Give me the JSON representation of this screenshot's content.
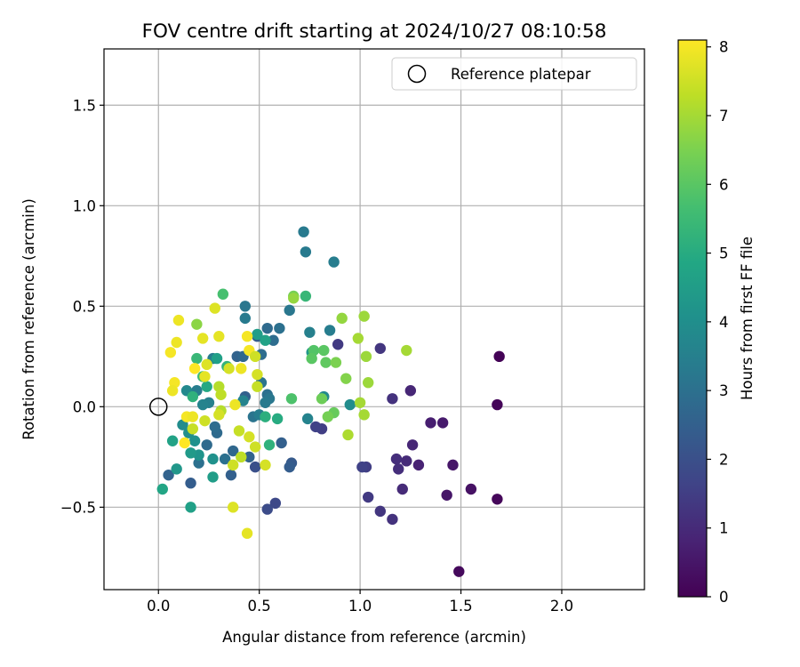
{
  "chart_data": {
    "type": "scatter",
    "title": "FOV centre drift starting at 2024/10/27 08:10:58",
    "xlabel": "Angular distance from reference (arcmin)",
    "ylabel": "Rotation from reference (arcmin)",
    "xlim": [
      -0.27,
      2.41
    ],
    "ylim": [
      -0.91,
      1.78
    ],
    "xticks": [
      0.0,
      0.5,
      1.0,
      1.5,
      2.0
    ],
    "xtick_labels": [
      "0.0",
      "0.5",
      "1.0",
      "1.5",
      "2.0"
    ],
    "yticks": [
      -0.5,
      0.0,
      0.5,
      1.0,
      1.5
    ],
    "ytick_labels": [
      "−0.5",
      "0.0",
      "0.5",
      "1.0",
      "1.5"
    ],
    "grid": true,
    "legend": {
      "position": "upper-right",
      "entries": [
        {
          "label": "Reference platepar",
          "marker": "open-circle",
          "x": 0.0,
          "y": 0.0
        }
      ]
    },
    "colorbar": {
      "label": "Hours from first FF file",
      "colormap": "viridis",
      "range": [
        0,
        8.1
      ],
      "ticks": [
        0,
        1,
        2,
        3,
        4,
        5,
        6,
        7,
        8
      ],
      "tick_labels": [
        "0",
        "1",
        "2",
        "3",
        "4",
        "5",
        "6",
        "7",
        "8"
      ]
    },
    "series": [
      {
        "color_by": "hours",
        "points": [
          [
            1.69,
            0.25,
            0.05
          ],
          [
            1.68,
            0.01,
            0.1
          ],
          [
            1.68,
            -0.46,
            0.15
          ],
          [
            1.49,
            -0.82,
            0.2
          ],
          [
            1.55,
            -0.41,
            0.4
          ],
          [
            1.46,
            -0.29,
            0.5
          ],
          [
            1.43,
            -0.44,
            0.5
          ],
          [
            1.41,
            -0.08,
            0.6
          ],
          [
            1.35,
            -0.08,
            0.7
          ],
          [
            1.29,
            -0.29,
            0.8
          ],
          [
            1.26,
            -0.19,
            0.9
          ],
          [
            1.25,
            0.08,
            0.9
          ],
          [
            1.23,
            -0.27,
            1.0
          ],
          [
            1.21,
            -0.41,
            1.0
          ],
          [
            1.19,
            -0.31,
            1.1
          ],
          [
            1.18,
            -0.26,
            1.1
          ],
          [
            1.16,
            -0.56,
            1.2
          ],
          [
            1.16,
            0.04,
            1.2
          ],
          [
            1.1,
            0.29,
            1.3
          ],
          [
            1.1,
            -0.52,
            1.3
          ],
          [
            1.04,
            -0.45,
            1.4
          ],
          [
            1.03,
            -0.3,
            1.5
          ],
          [
            1.01,
            -0.3,
            1.6
          ],
          [
            0.89,
            0.31,
            1.4
          ],
          [
            0.81,
            -0.11,
            1.5
          ],
          [
            0.78,
            -0.1,
            1.6
          ],
          [
            0.58,
            -0.48,
            1.8
          ],
          [
            0.54,
            -0.51,
            1.9
          ],
          [
            0.48,
            -0.3,
            2.0
          ],
          [
            0.66,
            -0.28,
            2.3
          ],
          [
            0.65,
            -0.3,
            2.4
          ],
          [
            0.61,
            -0.18,
            2.5
          ],
          [
            0.16,
            -0.38,
            2.4
          ],
          [
            0.05,
            -0.34,
            2.6
          ],
          [
            0.36,
            -0.34,
            2.5
          ],
          [
            0.45,
            -0.25,
            2.6
          ],
          [
            0.24,
            -0.19,
            2.8
          ],
          [
            0.2,
            -0.28,
            3.0
          ],
          [
            0.33,
            -0.26,
            3.0
          ],
          [
            0.29,
            -0.13,
            2.8
          ],
          [
            0.28,
            -0.1,
            2.9
          ],
          [
            0.37,
            -0.22,
            2.7
          ],
          [
            0.43,
            0.05,
            2.5
          ],
          [
            0.39,
            0.25,
            2.6
          ],
          [
            0.42,
            0.25,
            2.7
          ],
          [
            0.49,
            0.35,
            2.4
          ],
          [
            0.51,
            0.26,
            2.9
          ],
          [
            0.54,
            0.39,
            2.8
          ],
          [
            0.57,
            0.33,
            2.9
          ],
          [
            0.6,
            0.39,
            3.0
          ],
          [
            0.65,
            0.48,
            3.2
          ],
          [
            0.72,
            0.87,
            3.3
          ],
          [
            0.73,
            0.77,
            3.3
          ],
          [
            0.87,
            0.72,
            3.4
          ],
          [
            0.43,
            0.5,
            3.2
          ],
          [
            0.43,
            0.44,
            3.3
          ],
          [
            0.51,
            0.12,
            3.1
          ],
          [
            0.54,
            0.06,
            3.0
          ],
          [
            0.55,
            0.04,
            3.2
          ],
          [
            0.53,
            0.02,
            3.3
          ],
          [
            0.47,
            -0.05,
            3.1
          ],
          [
            0.5,
            -0.04,
            3.4
          ],
          [
            0.42,
            0.03,
            3.6
          ],
          [
            0.27,
            0.24,
            3.4
          ],
          [
            0.25,
            0.02,
            3.5
          ],
          [
            0.22,
            0.01,
            3.6
          ],
          [
            0.19,
            0.08,
            3.4
          ],
          [
            0.14,
            0.08,
            3.8
          ],
          [
            0.12,
            -0.09,
            3.9
          ],
          [
            0.15,
            -0.13,
            4.0
          ],
          [
            0.18,
            -0.17,
            4.1
          ],
          [
            0.2,
            -0.24,
            4.2
          ],
          [
            0.27,
            -0.26,
            4.1
          ],
          [
            0.09,
            -0.31,
            4.3
          ],
          [
            0.75,
            0.37,
            3.5
          ],
          [
            0.85,
            0.38,
            3.4
          ],
          [
            0.74,
            -0.06,
            3.6
          ],
          [
            0.82,
            0.05,
            3.8
          ],
          [
            0.95,
            0.01,
            3.9
          ],
          [
            0.76,
            0.27,
            4.3
          ],
          [
            0.16,
            -0.23,
            4.4
          ],
          [
            0.27,
            -0.35,
            4.5
          ],
          [
            0.16,
            -0.5,
            4.6
          ],
          [
            0.07,
            -0.17,
            4.7
          ],
          [
            0.02,
            -0.41,
            4.8
          ],
          [
            0.24,
            0.1,
            4.9
          ],
          [
            0.29,
            0.24,
            4.6
          ],
          [
            0.53,
            0.33,
            4.7
          ],
          [
            0.49,
            0.36,
            4.5
          ],
          [
            0.59,
            -0.06,
            5.0
          ],
          [
            0.53,
            -0.05,
            5.1
          ],
          [
            0.55,
            -0.19,
            5.2
          ],
          [
            0.73,
            0.55,
            5.4
          ],
          [
            0.34,
            0.2,
            5.3
          ],
          [
            0.17,
            0.05,
            5.2
          ],
          [
            0.19,
            0.24,
            5.4
          ],
          [
            0.22,
            0.15,
            5.6
          ],
          [
            0.32,
            0.56,
            5.7
          ],
          [
            0.66,
            0.04,
            5.8
          ],
          [
            0.77,
            0.28,
            5.9
          ],
          [
            0.76,
            0.24,
            6.0
          ],
          [
            0.82,
            0.28,
            6.0
          ],
          [
            0.83,
            0.22,
            6.1
          ],
          [
            0.87,
            -0.03,
            6.2
          ],
          [
            0.81,
            0.04,
            6.3
          ],
          [
            0.84,
            -0.05,
            6.4
          ],
          [
            0.88,
            0.22,
            6.5
          ],
          [
            0.93,
            0.14,
            6.6
          ],
          [
            0.67,
            0.55,
            6.4
          ],
          [
            0.67,
            0.54,
            6.8
          ],
          [
            0.19,
            0.41,
            6.7
          ],
          [
            0.91,
            0.44,
            6.8
          ],
          [
            1.02,
            0.45,
            6.9
          ],
          [
            1.03,
            0.25,
            6.9
          ],
          [
            1.04,
            0.12,
            6.9
          ],
          [
            1.02,
            -0.04,
            7.0
          ],
          [
            0.99,
            0.34,
            7.0
          ],
          [
            1.0,
            0.02,
            7.0
          ],
          [
            0.94,
            -0.14,
            7.1
          ],
          [
            1.23,
            0.28,
            7.0
          ],
          [
            0.3,
            0.1,
            7.2
          ],
          [
            0.31,
            0.06,
            7.3
          ],
          [
            0.31,
            -0.02,
            7.2
          ],
          [
            0.4,
            -0.12,
            7.4
          ],
          [
            0.41,
            -0.25,
            7.3
          ],
          [
            0.37,
            -0.29,
            7.5
          ],
          [
            0.45,
            -0.15,
            7.6
          ],
          [
            0.48,
            -0.2,
            7.5
          ],
          [
            0.53,
            -0.29,
            7.6
          ],
          [
            0.37,
            -0.5,
            7.7
          ],
          [
            0.44,
            -0.63,
            7.8
          ],
          [
            0.35,
            0.19,
            7.6
          ],
          [
            0.28,
            0.49,
            7.7
          ],
          [
            0.3,
            0.35,
            7.8
          ],
          [
            0.22,
            0.34,
            7.8
          ],
          [
            0.1,
            0.43,
            7.9
          ],
          [
            0.09,
            0.32,
            7.9
          ],
          [
            0.06,
            0.27,
            8.0
          ],
          [
            0.08,
            0.12,
            8.0
          ],
          [
            0.07,
            0.08,
            7.9
          ],
          [
            0.14,
            -0.05,
            8.0
          ],
          [
            0.17,
            -0.05,
            7.9
          ],
          [
            0.13,
            -0.18,
            8.1
          ],
          [
            0.18,
            0.19,
            8.1
          ],
          [
            0.23,
            0.15,
            7.8
          ],
          [
            0.24,
            0.21,
            7.7
          ],
          [
            0.38,
            0.01,
            7.9
          ],
          [
            0.41,
            0.19,
            7.9
          ],
          [
            0.44,
            0.35,
            8.0
          ],
          [
            0.45,
            0.28,
            8.0
          ],
          [
            0.49,
            0.16,
            7.6
          ],
          [
            0.49,
            0.1,
            7.4
          ],
          [
            0.48,
            0.25,
            7.5
          ],
          [
            0.3,
            -0.04,
            7.6
          ],
          [
            0.23,
            -0.07,
            7.5
          ],
          [
            0.17,
            -0.11,
            7.4
          ]
        ]
      }
    ]
  }
}
